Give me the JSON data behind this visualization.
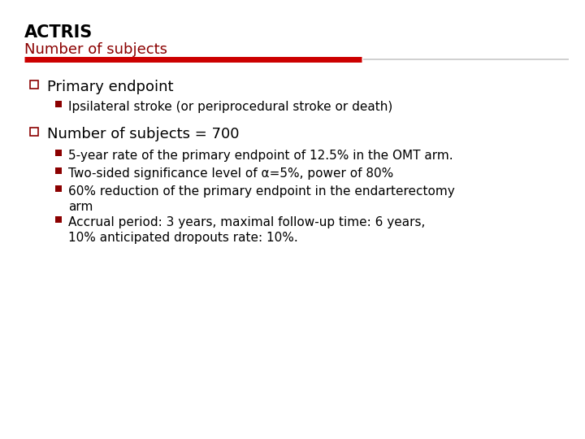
{
  "title": "ACTRIS",
  "subtitle": "Number of subjects",
  "title_color": "#000000",
  "subtitle_color": "#8B0000",
  "bg_color": "#FFFFFF",
  "divider_color_left": "#CC0000",
  "divider_color_right": "#C8C8C8",
  "bullet1_text": "Primary endpoint",
  "bullet1_sub": [
    "Ipsilateral stroke (or periprocedural stroke or death)"
  ],
  "bullet2_text": "Number of subjects = 700",
  "bullet2_sub": [
    "5-year rate of the primary endpoint of 12.5% in the OMT arm.",
    "Two-sided significance level of α=5%, power of 80%",
    "60% reduction of the primary endpoint in the endarterectomy\narm",
    "Accrual period: 3 years, maximal follow-up time: 6 years,\n10% anticipated dropouts rate: 10%."
  ],
  "square_color": "#8B0000",
  "small_square_color": "#8B0000",
  "text_color": "#000000",
  "font_size_title": 15,
  "font_size_subtitle": 13,
  "font_size_bullet1": 13,
  "font_size_sub": 11
}
